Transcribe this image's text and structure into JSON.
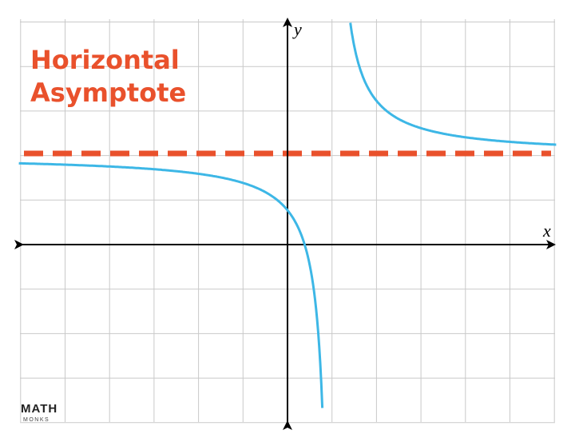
{
  "title": {
    "lines": [
      "Horizontal",
      "Asymptote"
    ]
  },
  "axes": {
    "x_label": "x",
    "y_label": "y"
  },
  "logo": {
    "top": "MATH",
    "bottom": "MONKS"
  }
}
